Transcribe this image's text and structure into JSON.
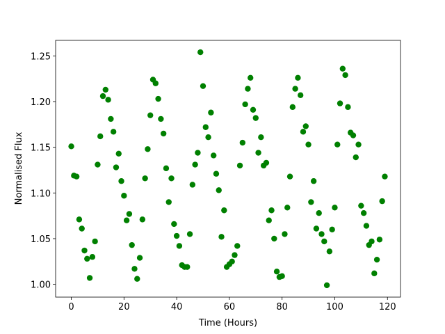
{
  "chart_data": {
    "type": "scatter",
    "xlabel": "Time (Hours)",
    "ylabel": "Normalised Flux",
    "color": "#008000",
    "x": [
      0,
      1,
      2,
      3,
      4,
      5,
      6,
      7,
      8,
      9,
      10,
      11,
      12,
      13,
      14,
      15,
      16,
      17,
      18,
      19,
      20,
      21,
      22,
      23,
      24,
      25,
      26,
      27,
      28,
      29,
      30,
      31,
      32,
      33,
      34,
      35,
      36,
      37,
      38,
      39,
      40,
      41,
      42,
      43,
      44,
      45,
      46,
      47,
      48,
      49,
      50,
      51,
      52,
      53,
      54,
      55,
      56,
      57,
      58,
      59,
      60,
      61,
      62,
      63,
      64,
      65,
      66,
      67,
      68,
      69,
      70,
      71,
      72,
      73,
      74,
      75,
      76,
      77,
      78,
      79,
      80,
      81,
      82,
      83,
      84,
      85,
      86,
      87,
      88,
      89,
      90,
      91,
      92,
      93,
      94,
      95,
      96,
      97,
      98,
      99,
      100,
      101,
      102,
      103,
      104,
      105,
      106,
      107,
      108,
      109,
      110,
      111,
      112,
      113,
      114,
      115,
      116,
      117,
      118,
      119
    ],
    "values": [
      1.151,
      1.119,
      1.118,
      1.071,
      1.061,
      1.037,
      1.028,
      1.007,
      1.03,
      1.047,
      1.131,
      1.162,
      1.206,
      1.213,
      1.202,
      1.181,
      1.167,
      1.128,
      1.143,
      1.113,
      1.097,
      1.07,
      1.077,
      1.043,
      1.017,
      1.006,
      1.029,
      1.071,
      1.116,
      1.148,
      1.185,
      1.224,
      1.22,
      1.203,
      1.181,
      1.165,
      1.127,
      1.09,
      1.116,
      1.066,
      1.053,
      1.042,
      1.021,
      1.019,
      1.019,
      1.055,
      1.109,
      1.131,
      1.144,
      1.254,
      1.217,
      1.172,
      1.161,
      1.188,
      1.141,
      1.121,
      1.103,
      1.052,
      1.081,
      1.019,
      1.022,
      1.025,
      1.032,
      1.042,
      1.13,
      1.155,
      1.197,
      1.214,
      1.226,
      1.191,
      1.182,
      1.144,
      1.161,
      1.13,
      1.133,
      1.07,
      1.081,
      1.05,
      1.014,
      1.008,
      1.009,
      1.055,
      1.084,
      1.118,
      1.194,
      1.214,
      1.226,
      1.207,
      1.167,
      1.173,
      1.153,
      1.09,
      1.113,
      1.061,
      1.078,
      1.055,
      1.047,
      0.999,
      1.036,
      1.06,
      1.084,
      1.153,
      1.198,
      1.236,
      1.229,
      1.194,
      1.166,
      1.163,
      1.139,
      1.153,
      1.086,
      1.078,
      1.064,
      1.043,
      1.047,
      1.012,
      1.027,
      1.049,
      1.091,
      1.118
    ],
    "xlim": [
      -5.95,
      124.95
    ],
    "xticks": [
      0,
      20,
      40,
      60,
      80,
      100,
      120
    ],
    "ylim": [
      0.986,
      1.267
    ],
    "yticks": [
      {
        "value": 1.0,
        "label": "1.00"
      },
      {
        "value": 1.05,
        "label": "1.05"
      },
      {
        "value": 1.1,
        "label": "1.10"
      },
      {
        "value": 1.15,
        "label": "1.15"
      },
      {
        "value": 1.2,
        "label": "1.20"
      },
      {
        "value": 1.25,
        "label": "1.25"
      }
    ]
  }
}
